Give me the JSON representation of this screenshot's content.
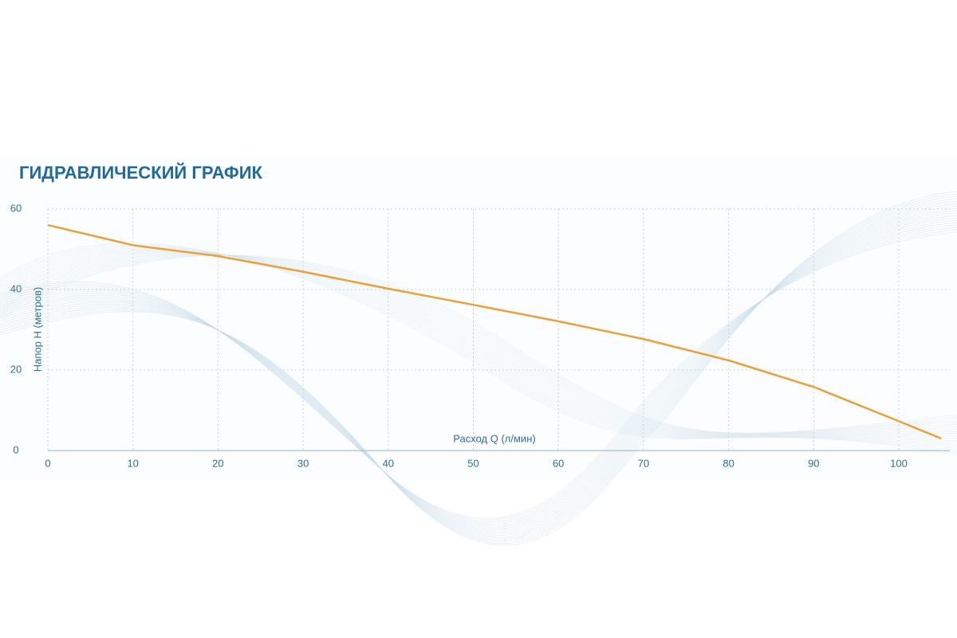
{
  "chart_data": {
    "type": "line",
    "title": "ГИДРАВЛИЧЕСКИЙ ГРАФИК",
    "y_label": "Напор Н (метров)",
    "x_label": "Расход Q (л/мин)",
    "x": [
      0,
      10,
      20,
      30,
      40,
      50,
      60,
      70,
      80,
      90,
      100,
      105
    ],
    "series": [
      {
        "color": "#eba13a",
        "values": [
          56,
          51,
          48.3,
          44.4,
          40.2,
          36.2,
          32.1,
          27.7,
          22.4,
          15.8,
          7.3,
          3
        ]
      }
    ],
    "xlim": [
      0,
      106
    ],
    "xticks": [
      0,
      10,
      20,
      30,
      40,
      50,
      60,
      70,
      80,
      90,
      100
    ],
    "ylim": [
      0,
      60
    ],
    "yticks": [
      0,
      20,
      40,
      60
    ],
    "grid": true
  }
}
